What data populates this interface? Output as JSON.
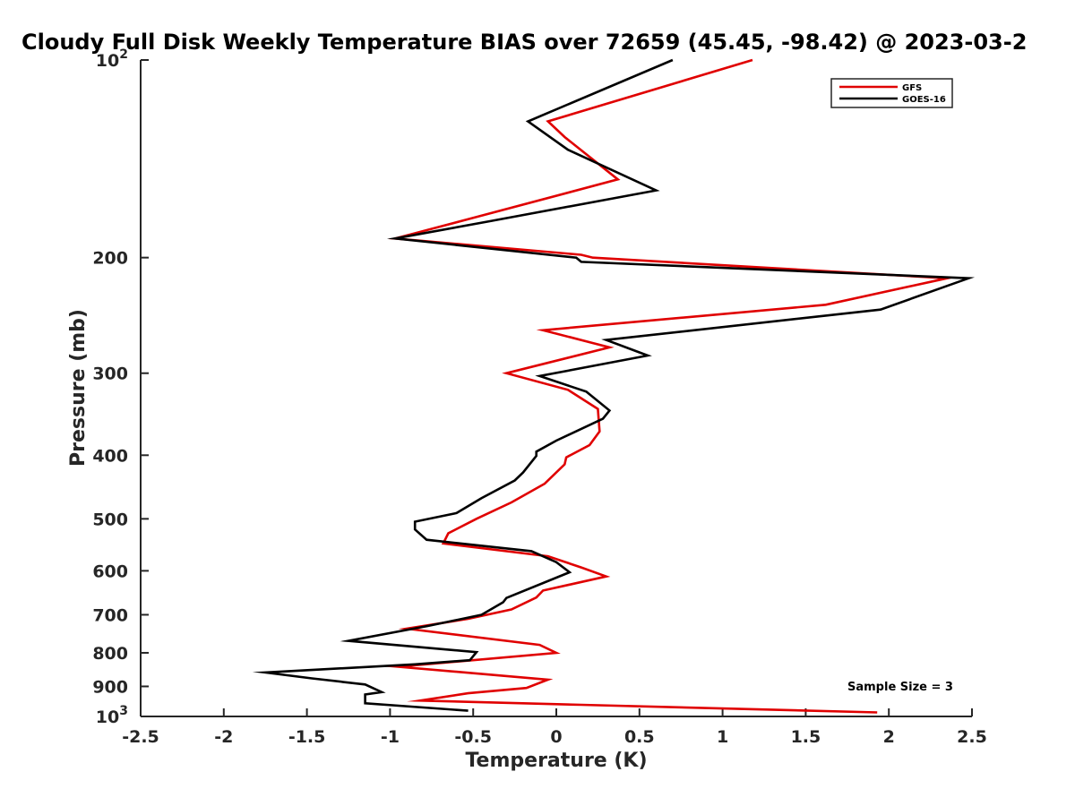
{
  "chart_data": {
    "type": "line",
    "title": "Cloudy Full Disk Weekly Temperature BIAS over 72659 (45.45, -98.42) @ 2023-03-2",
    "xlabel": "Temperature (K)",
    "ylabel": "Pressure (mb)",
    "xlim": [
      -2.5,
      2.5
    ],
    "ylim": [
      100,
      1000
    ],
    "y_scale": "log",
    "y_reversed": true,
    "x_ticks": [
      -2.5,
      -2,
      -1.5,
      -1,
      -0.5,
      0,
      0.5,
      1,
      1.5,
      2,
      2.5
    ],
    "x_tick_labels": [
      "-2.5",
      "-2",
      "-1.5",
      "-1",
      "-0.5",
      "0",
      "0.5",
      "1",
      "1.5",
      "2",
      "2.5"
    ],
    "y_ticks": [
      100,
      200,
      300,
      400,
      500,
      600,
      700,
      800,
      900,
      1000
    ],
    "y_tick_labels": [
      {
        "base": "10",
        "exp": "2"
      },
      {
        "base": "200",
        "exp": ""
      },
      {
        "base": "300",
        "exp": ""
      },
      {
        "base": "400",
        "exp": ""
      },
      {
        "base": "500",
        "exp": ""
      },
      {
        "base": "600",
        "exp": ""
      },
      {
        "base": "700",
        "exp": ""
      },
      {
        "base": "800",
        "exp": ""
      },
      {
        "base": "900",
        "exp": ""
      },
      {
        "base": "10",
        "exp": "3"
      }
    ],
    "legend_position": "top-right",
    "grid": false,
    "annotation": "Sample Size = 3",
    "series": [
      {
        "name": "GFS",
        "color": "#e00000",
        "points": [
          [
            1.18,
            100
          ],
          [
            -0.05,
            124
          ],
          [
            0.05,
            131
          ],
          [
            0.37,
            152
          ],
          [
            -0.5,
            174
          ],
          [
            -0.97,
            187
          ],
          [
            0.15,
            198
          ],
          [
            0.22,
            200
          ],
          [
            2.35,
            215
          ],
          [
            1.62,
            236
          ],
          [
            -0.08,
            258
          ],
          [
            0.32,
            274
          ],
          [
            -0.3,
            300
          ],
          [
            0.07,
            318
          ],
          [
            0.25,
            340
          ],
          [
            0.26,
            368
          ],
          [
            0.2,
            386
          ],
          [
            0.06,
            403
          ],
          [
            0.05,
            413
          ],
          [
            -0.07,
            442
          ],
          [
            -0.27,
            472
          ],
          [
            -0.48,
            500
          ],
          [
            -0.65,
            526
          ],
          [
            -0.68,
            545
          ],
          [
            -0.05,
            570
          ],
          [
            0.15,
            593
          ],
          [
            0.3,
            612
          ],
          [
            -0.08,
            643
          ],
          [
            -0.12,
            659
          ],
          [
            -0.27,
            687
          ],
          [
            -0.53,
            710
          ],
          [
            -0.9,
            735
          ],
          [
            -0.1,
            778
          ],
          [
            0.0,
            800
          ],
          [
            -0.95,
            840
          ],
          [
            -0.05,
            879
          ],
          [
            -0.18,
            905
          ],
          [
            -0.53,
            922
          ],
          [
            -0.82,
            946
          ],
          [
            0.15,
            960
          ],
          [
            1.93,
            986
          ]
        ]
      },
      {
        "name": "GOES-16",
        "color": "#000000",
        "points": [
          [
            0.7,
            100
          ],
          [
            -0.17,
            124
          ],
          [
            0.07,
            137
          ],
          [
            0.6,
            158
          ],
          [
            -0.4,
            176
          ],
          [
            -0.97,
            187
          ],
          [
            0.12,
            200
          ],
          [
            0.15,
            203
          ],
          [
            2.48,
            215
          ],
          [
            1.95,
            240
          ],
          [
            0.3,
            267
          ],
          [
            0.55,
            282
          ],
          [
            -0.1,
            303
          ],
          [
            0.18,
            320
          ],
          [
            0.32,
            342
          ],
          [
            0.28,
            352
          ],
          [
            0.0,
            380
          ],
          [
            -0.12,
            395
          ],
          [
            -0.12,
            401
          ],
          [
            -0.2,
            425
          ],
          [
            -0.25,
            437
          ],
          [
            -0.45,
            465
          ],
          [
            -0.6,
            490
          ],
          [
            -0.85,
            505
          ],
          [
            -0.85,
            519
          ],
          [
            -0.78,
            538
          ],
          [
            -0.15,
            560
          ],
          [
            0.0,
            582
          ],
          [
            0.08,
            603
          ],
          [
            -0.3,
            660
          ],
          [
            -0.32,
            670
          ],
          [
            -0.45,
            700
          ],
          [
            -0.77,
            728
          ],
          [
            -1.25,
            767
          ],
          [
            -0.48,
            798
          ],
          [
            -0.52,
            821
          ],
          [
            -0.85,
            833
          ],
          [
            -1.75,
            857
          ],
          [
            -1.47,
            875
          ],
          [
            -1.15,
            894
          ],
          [
            -1.05,
            918
          ],
          [
            -1.15,
            926
          ],
          [
            -1.15,
            955
          ],
          [
            -0.53,
            980
          ]
        ]
      }
    ]
  }
}
